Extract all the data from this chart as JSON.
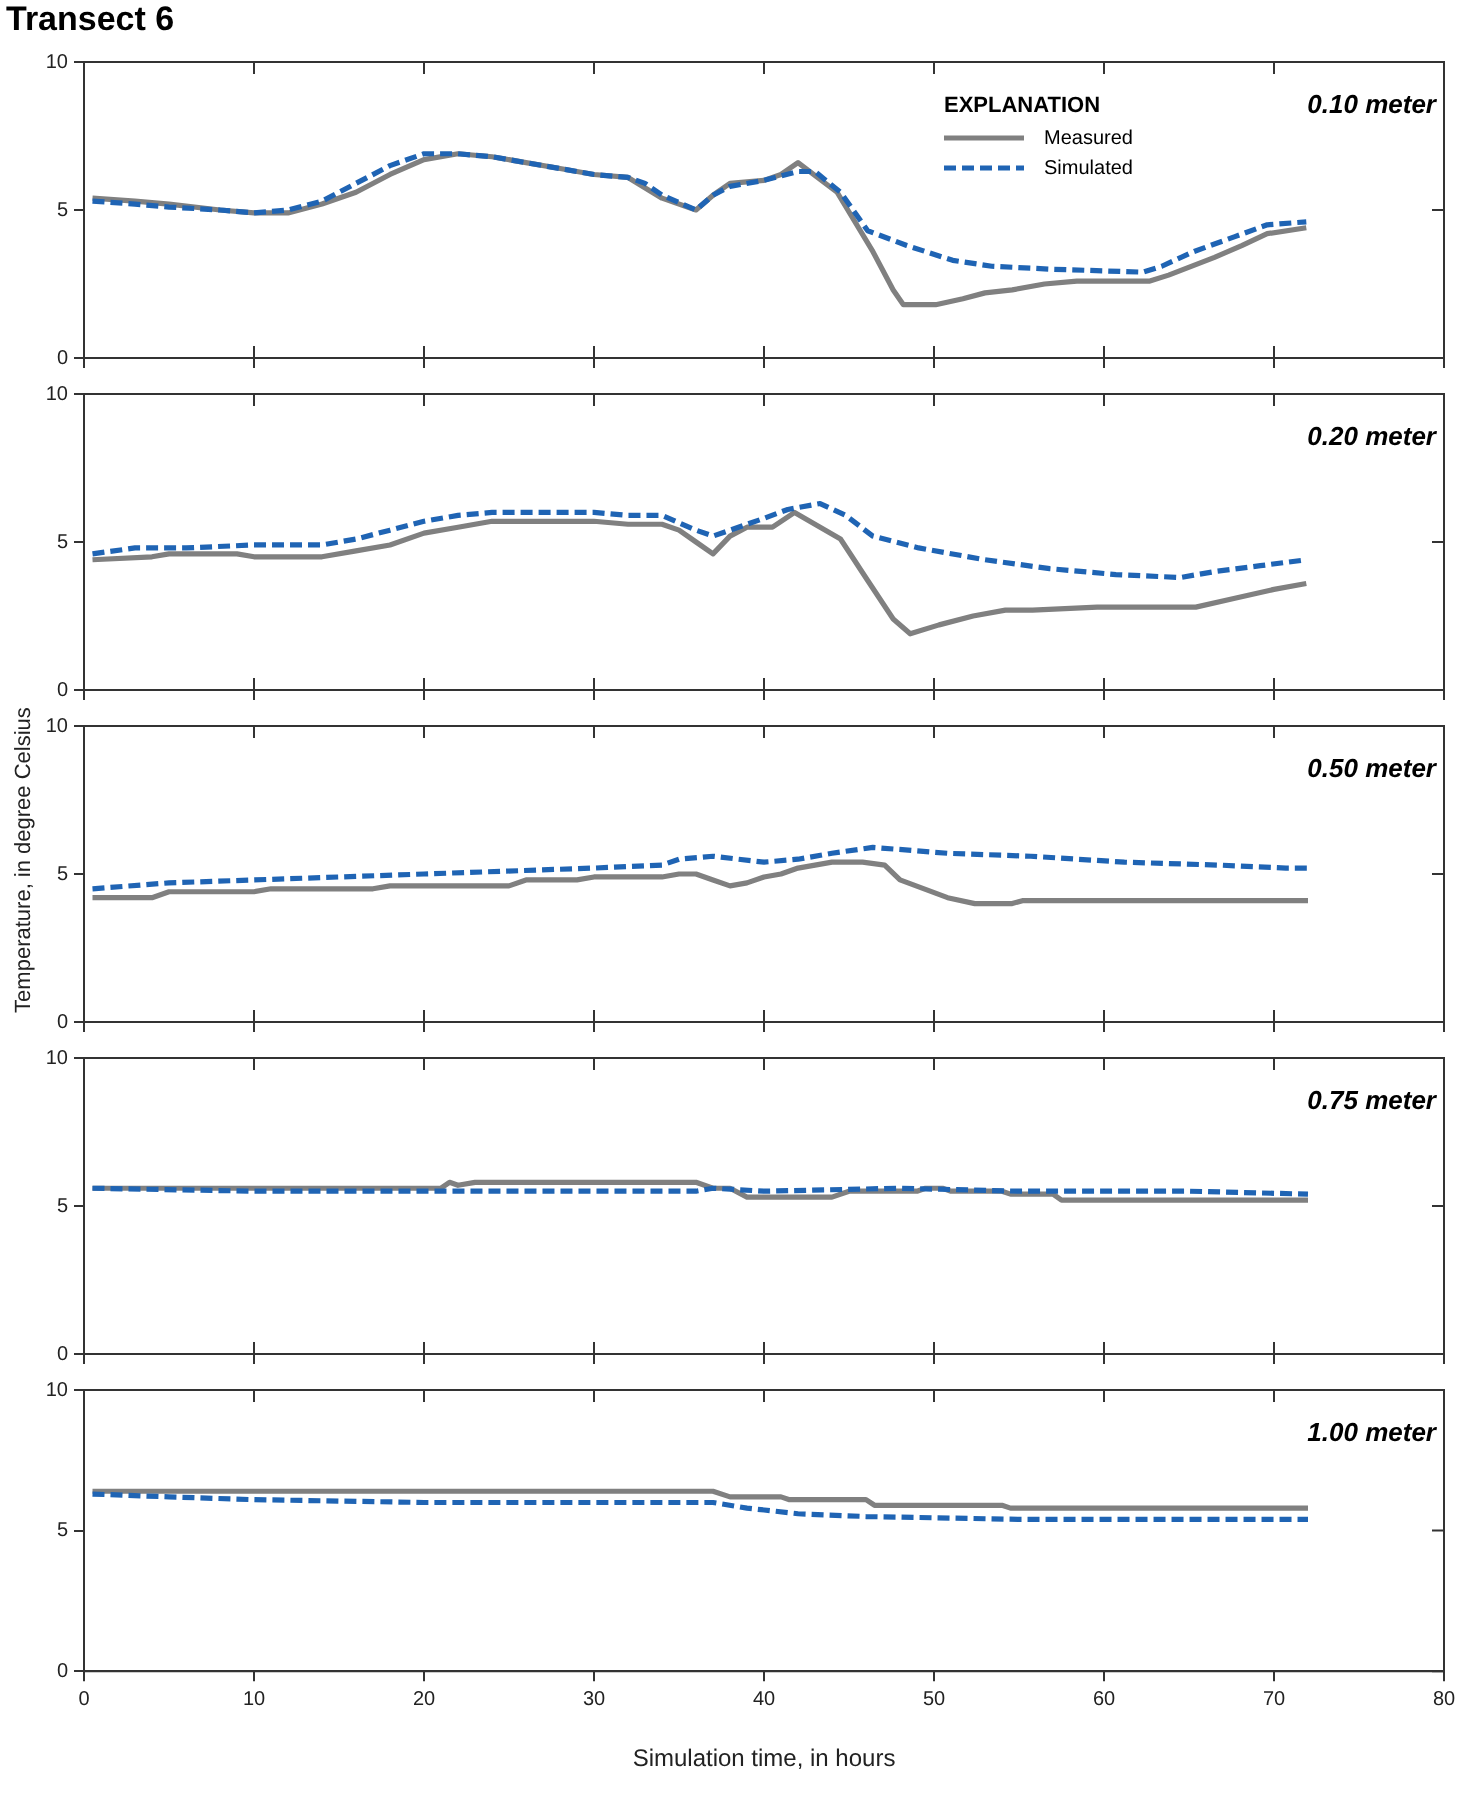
{
  "chart_data": [
    {
      "type": "line",
      "title": "Transect 6",
      "annotations": [
        "0.10 meter"
      ],
      "legend": "top right",
      "legend_title": "EXPLANATION",
      "xlim": [
        0,
        80
      ],
      "xticks": [
        0,
        10,
        20,
        30,
        40,
        50,
        60,
        70,
        80
      ],
      "ylim": [
        0,
        10
      ],
      "yticks": [
        0,
        5,
        10
      ],
      "tick_labels": "y",
      "grid": false,
      "series": [
        {
          "name": "Measured",
          "color": "#808080",
          "line_style": "solid",
          "x": [
            0.5,
            3,
            5,
            8,
            10,
            12,
            14,
            16,
            18,
            20,
            22,
            24,
            26,
            28,
            30,
            32,
            34,
            36,
            37,
            38,
            40,
            41,
            42,
            44.3,
            46.4,
            47.6,
            48.2,
            50.1,
            51.7,
            53,
            54.6,
            56.5,
            58.4,
            62.7,
            63.8,
            66.5,
            68.1,
            69.6,
            71.9
          ],
          "values": [
            5.4,
            5.3,
            5.2,
            5.0,
            4.9,
            4.9,
            5.2,
            5.6,
            6.2,
            6.7,
            6.9,
            6.8,
            6.6,
            6.4,
            6.2,
            6.1,
            5.4,
            5.0,
            5.5,
            5.9,
            6.0,
            6.2,
            6.6,
            5.6,
            3.6,
            2.3,
            1.8,
            1.8,
            2.0,
            2.2,
            2.3,
            2.5,
            2.6,
            2.6,
            2.8,
            3.4,
            3.8,
            4.2,
            4.4
          ]
        },
        {
          "name": "Simulated",
          "color": "#1f64b4",
          "line_style": "dashed",
          "x": [
            0.5,
            3,
            5,
            8,
            10,
            12,
            14,
            16,
            18,
            20,
            22,
            24,
            26,
            28,
            30,
            32,
            33,
            34,
            36,
            37,
            38,
            40,
            42,
            43,
            44.5,
            46.1,
            48.4,
            51.1,
            53.4,
            56.9,
            62.3,
            63.4,
            65.3,
            67.7,
            69.6,
            71.9
          ],
          "values": [
            5.3,
            5.2,
            5.1,
            5.0,
            4.9,
            5.0,
            5.3,
            5.9,
            6.5,
            6.9,
            6.9,
            6.8,
            6.6,
            6.4,
            6.2,
            6.1,
            5.9,
            5.5,
            5.0,
            5.5,
            5.8,
            6.0,
            6.3,
            6.3,
            5.6,
            4.3,
            3.8,
            3.3,
            3.1,
            3.0,
            2.9,
            3.1,
            3.6,
            4.1,
            4.5,
            4.6
          ]
        }
      ]
    },
    {
      "type": "line",
      "annotations": [
        "0.20 meter"
      ],
      "xlim": [
        0,
        80
      ],
      "xticks": [
        0,
        10,
        20,
        30,
        40,
        50,
        60,
        70,
        80
      ],
      "ylim": [
        0,
        10
      ],
      "yticks": [
        0,
        5,
        10
      ],
      "tick_labels": "y",
      "grid": false,
      "series": [
        {
          "color": "#808080",
          "line_style": "solid",
          "x": [
            0.5,
            4,
            5,
            9,
            10,
            13,
            14,
            16,
            18,
            20,
            22,
            24,
            26,
            30,
            32,
            34,
            35,
            36,
            37,
            38,
            39,
            40.5,
            41.8,
            44.5,
            46.1,
            47.6,
            48.6,
            50.3,
            52.3,
            54.2,
            55.8,
            59.6,
            65.4,
            67.7,
            70,
            71.9
          ],
          "values": [
            4.4,
            4.5,
            4.6,
            4.6,
            4.5,
            4.5,
            4.5,
            4.7,
            4.9,
            5.3,
            5.5,
            5.7,
            5.7,
            5.7,
            5.6,
            5.6,
            5.4,
            5.0,
            4.6,
            5.2,
            5.5,
            5.5,
            6.0,
            5.1,
            3.7,
            2.4,
            1.9,
            2.2,
            2.5,
            2.7,
            2.7,
            2.8,
            2.8,
            3.1,
            3.4,
            3.6
          ]
        },
        {
          "color": "#1f64b4",
          "line_style": "dashed",
          "x": [
            0.5,
            3,
            6,
            10,
            14,
            16,
            18,
            20,
            22,
            24,
            26,
            30,
            32,
            34,
            36,
            37,
            38,
            40,
            41.4,
            43.3,
            44.8,
            46.4,
            49.1,
            53,
            56.8,
            60.7,
            64.5,
            66.5,
            69.2,
            71.9
          ],
          "values": [
            4.6,
            4.8,
            4.8,
            4.9,
            4.9,
            5.1,
            5.4,
            5.7,
            5.9,
            6.0,
            6.0,
            6.0,
            5.9,
            5.9,
            5.4,
            5.2,
            5.4,
            5.8,
            6.1,
            6.3,
            5.9,
            5.2,
            4.8,
            4.4,
            4.1,
            3.9,
            3.8,
            4.0,
            4.2,
            4.4
          ]
        }
      ]
    },
    {
      "type": "line",
      "annotations": [
        "0.50 meter"
      ],
      "ylabel": "Temperature, in degree Celsius",
      "xlim": [
        0,
        80
      ],
      "xticks": [
        0,
        10,
        20,
        30,
        40,
        50,
        60,
        70,
        80
      ],
      "ylim": [
        0,
        10
      ],
      "yticks": [
        0,
        5,
        10
      ],
      "tick_labels": "y",
      "grid": false,
      "series": [
        {
          "color": "#808080",
          "line_style": "solid",
          "x": [
            0.5,
            4,
            5,
            10,
            11,
            17,
            18,
            25,
            26,
            29,
            30,
            34,
            35,
            36,
            37,
            38,
            39,
            40,
            41,
            42,
            43,
            44,
            45.8,
            47.1,
            48,
            50.8,
            52.4,
            54.6,
            55.2,
            60,
            72
          ],
          "values": [
            4.2,
            4.2,
            4.4,
            4.4,
            4.5,
            4.5,
            4.6,
            4.6,
            4.8,
            4.8,
            4.9,
            4.9,
            5.0,
            5.0,
            4.8,
            4.6,
            4.7,
            4.9,
            5.0,
            5.2,
            5.3,
            5.4,
            5.4,
            5.3,
            4.8,
            4.2,
            4.0,
            4.0,
            4.1,
            4.1,
            4.1
          ]
        },
        {
          "color": "#1f64b4",
          "line_style": "dashed",
          "x": [
            0.5,
            5,
            10,
            20,
            30,
            34,
            35,
            37,
            40,
            42,
            44,
            46.4,
            50.8,
            55.7,
            61.2,
            66.8,
            70.7,
            72
          ],
          "values": [
            4.5,
            4.7,
            4.8,
            5.0,
            5.2,
            5.3,
            5.5,
            5.6,
            5.4,
            5.5,
            5.7,
            5.9,
            5.7,
            5.6,
            5.4,
            5.3,
            5.2,
            5.2
          ]
        }
      ]
    },
    {
      "type": "line",
      "annotations": [
        "0.75 meter"
      ],
      "xlim": [
        0,
        80
      ],
      "xticks": [
        0,
        10,
        20,
        30,
        40,
        50,
        60,
        70,
        80
      ],
      "ylim": [
        0,
        10
      ],
      "yticks": [
        0,
        5,
        10
      ],
      "tick_labels": "y",
      "grid": false,
      "series": [
        {
          "color": "#808080",
          "line_style": "solid",
          "x": [
            0.5,
            21,
            21.5,
            22,
            23,
            36,
            37,
            38,
            39,
            44,
            45,
            49,
            49.5,
            50.5,
            51,
            54,
            54.5,
            57,
            57.5,
            72
          ],
          "values": [
            5.6,
            5.6,
            5.8,
            5.7,
            5.8,
            5.8,
            5.6,
            5.6,
            5.3,
            5.3,
            5.5,
            5.5,
            5.6,
            5.6,
            5.5,
            5.5,
            5.4,
            5.4,
            5.2,
            5.2
          ]
        },
        {
          "color": "#1f64b4",
          "line_style": "dashed",
          "x": [
            0.5,
            10,
            20,
            36,
            37,
            40,
            48,
            55,
            65,
            72
          ],
          "values": [
            5.6,
            5.5,
            5.5,
            5.5,
            5.6,
            5.5,
            5.6,
            5.5,
            5.5,
            5.4
          ]
        }
      ]
    },
    {
      "type": "line",
      "annotations": [
        "1.00 meter"
      ],
      "xlabel": "Simulation time, in hours",
      "xlim": [
        0,
        80
      ],
      "xticks": [
        0,
        10,
        20,
        30,
        40,
        50,
        60,
        70,
        80
      ],
      "ylim": [
        0,
        10
      ],
      "yticks": [
        0,
        5,
        10
      ],
      "grid": false,
      "series": [
        {
          "color": "#808080",
          "line_style": "solid",
          "x": [
            0.5,
            37,
            38,
            41,
            41.5,
            46,
            46.5,
            54,
            54.5,
            72
          ],
          "values": [
            6.4,
            6.4,
            6.2,
            6.2,
            6.1,
            6.1,
            5.9,
            5.9,
            5.8,
            5.8
          ]
        },
        {
          "color": "#1f64b4",
          "line_style": "dashed",
          "x": [
            0.5,
            5,
            10,
            20,
            30,
            37,
            39,
            42,
            46,
            55,
            72
          ],
          "values": [
            6.3,
            6.2,
            6.1,
            6.0,
            6.0,
            6.0,
            5.8,
            5.6,
            5.5,
            5.4,
            5.4
          ]
        }
      ]
    }
  ]
}
